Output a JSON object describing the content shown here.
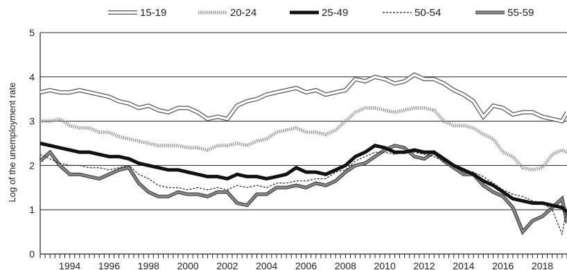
{
  "chart_data": {
    "type": "line",
    "title": "",
    "xlabel": "",
    "ylabel": "Log of the unemployment rate",
    "xlim": [
      1993.0,
      2019.75
    ],
    "ylim": [
      0,
      5
    ],
    "y_ticks": [
      0,
      1,
      2,
      3,
      4,
      5
    ],
    "x_tick_labels": [
      "1994",
      "1996",
      "1998",
      "2000",
      "2002",
      "2004",
      "2006",
      "2008",
      "2010",
      "2012",
      "2014",
      "2016",
      "2018"
    ],
    "grid": "horizontal",
    "legend_position": "top",
    "series": [
      {
        "name": "15-19",
        "style": "double-line",
        "color": "#555555",
        "fill": "#ffffff",
        "points": [
          [
            1993.0,
            3.65
          ],
          [
            1993.5,
            3.7
          ],
          [
            1994.0,
            3.65
          ],
          [
            1994.5,
            3.65
          ],
          [
            1995.0,
            3.7
          ],
          [
            1995.5,
            3.65
          ],
          [
            1996.0,
            3.6
          ],
          [
            1996.5,
            3.55
          ],
          [
            1997.0,
            3.45
          ],
          [
            1997.5,
            3.4
          ],
          [
            1998.0,
            3.3
          ],
          [
            1998.5,
            3.35
          ],
          [
            1999.0,
            3.25
          ],
          [
            1999.5,
            3.2
          ],
          [
            2000.0,
            3.3
          ],
          [
            2000.5,
            3.3
          ],
          [
            2001.0,
            3.2
          ],
          [
            2001.5,
            3.05
          ],
          [
            2002.0,
            3.1
          ],
          [
            2002.5,
            3.05
          ],
          [
            2003.0,
            3.35
          ],
          [
            2003.5,
            3.45
          ],
          [
            2004.0,
            3.5
          ],
          [
            2004.5,
            3.6
          ],
          [
            2005.0,
            3.65
          ],
          [
            2005.5,
            3.7
          ],
          [
            2006.0,
            3.75
          ],
          [
            2006.5,
            3.65
          ],
          [
            2007.0,
            3.7
          ],
          [
            2007.5,
            3.6
          ],
          [
            2008.0,
            3.65
          ],
          [
            2008.5,
            3.7
          ],
          [
            2009.0,
            3.95
          ],
          [
            2009.5,
            3.9
          ],
          [
            2010.0,
            4.0
          ],
          [
            2010.5,
            3.95
          ],
          [
            2011.0,
            3.85
          ],
          [
            2011.5,
            3.9
          ],
          [
            2012.0,
            4.05
          ],
          [
            2012.5,
            3.95
          ],
          [
            2013.0,
            3.95
          ],
          [
            2013.5,
            3.85
          ],
          [
            2014.0,
            3.7
          ],
          [
            2014.5,
            3.6
          ],
          [
            2015.0,
            3.45
          ],
          [
            2015.5,
            3.1
          ],
          [
            2016.0,
            3.35
          ],
          [
            2016.5,
            3.3
          ],
          [
            2017.0,
            3.15
          ],
          [
            2017.5,
            3.2
          ],
          [
            2018.0,
            3.2
          ],
          [
            2018.5,
            3.1
          ],
          [
            2019.0,
            3.05
          ],
          [
            2019.5,
            3.0
          ],
          [
            2019.75,
            3.2
          ]
        ]
      },
      {
        "name": "20-24",
        "style": "dotted-band",
        "color": "#999999",
        "fill": "#999999",
        "points": [
          [
            1993.0,
            3.0
          ],
          [
            1993.5,
            3.0
          ],
          [
            1994.0,
            3.05
          ],
          [
            1994.5,
            2.9
          ],
          [
            1995.0,
            2.85
          ],
          [
            1995.5,
            2.85
          ],
          [
            1996.0,
            2.75
          ],
          [
            1996.5,
            2.75
          ],
          [
            1997.0,
            2.65
          ],
          [
            1997.5,
            2.6
          ],
          [
            1998.0,
            2.55
          ],
          [
            1998.5,
            2.5
          ],
          [
            1999.0,
            2.45
          ],
          [
            1999.5,
            2.45
          ],
          [
            2000.0,
            2.45
          ],
          [
            2000.5,
            2.4
          ],
          [
            2001.0,
            2.4
          ],
          [
            2001.5,
            2.35
          ],
          [
            2002.0,
            2.45
          ],
          [
            2002.5,
            2.45
          ],
          [
            2003.0,
            2.5
          ],
          [
            2003.5,
            2.45
          ],
          [
            2004.0,
            2.55
          ],
          [
            2004.5,
            2.6
          ],
          [
            2005.0,
            2.75
          ],
          [
            2005.5,
            2.8
          ],
          [
            2006.0,
            2.85
          ],
          [
            2006.5,
            2.75
          ],
          [
            2007.0,
            2.75
          ],
          [
            2007.5,
            2.7
          ],
          [
            2008.0,
            2.8
          ],
          [
            2008.5,
            3.0
          ],
          [
            2009.0,
            3.2
          ],
          [
            2009.5,
            3.3
          ],
          [
            2010.0,
            3.3
          ],
          [
            2010.5,
            3.25
          ],
          [
            2011.0,
            3.2
          ],
          [
            2011.5,
            3.25
          ],
          [
            2012.0,
            3.3
          ],
          [
            2012.5,
            3.3
          ],
          [
            2013.0,
            3.25
          ],
          [
            2013.5,
            3.0
          ],
          [
            2014.0,
            2.9
          ],
          [
            2014.5,
            2.9
          ],
          [
            2015.0,
            2.85
          ],
          [
            2015.5,
            2.7
          ],
          [
            2016.0,
            2.6
          ],
          [
            2016.5,
            2.3
          ],
          [
            2017.0,
            2.2
          ],
          [
            2017.5,
            1.95
          ],
          [
            2018.0,
            1.9
          ],
          [
            2018.5,
            1.95
          ],
          [
            2019.0,
            2.25
          ],
          [
            2019.5,
            2.35
          ],
          [
            2019.75,
            2.3
          ]
        ]
      },
      {
        "name": "25-49",
        "style": "thick-solid",
        "color": "#111111",
        "fill": "#111111",
        "points": [
          [
            1993.0,
            2.5
          ],
          [
            1993.5,
            2.45
          ],
          [
            1994.0,
            2.4
          ],
          [
            1994.5,
            2.35
          ],
          [
            1995.0,
            2.3
          ],
          [
            1995.5,
            2.3
          ],
          [
            1996.0,
            2.25
          ],
          [
            1996.5,
            2.2
          ],
          [
            1997.0,
            2.2
          ],
          [
            1997.5,
            2.15
          ],
          [
            1998.0,
            2.05
          ],
          [
            1998.5,
            2.0
          ],
          [
            1999.0,
            1.95
          ],
          [
            1999.5,
            1.9
          ],
          [
            2000.0,
            1.9
          ],
          [
            2000.5,
            1.85
          ],
          [
            2001.0,
            1.8
          ],
          [
            2001.5,
            1.75
          ],
          [
            2002.0,
            1.75
          ],
          [
            2002.5,
            1.7
          ],
          [
            2003.0,
            1.8
          ],
          [
            2003.5,
            1.75
          ],
          [
            2004.0,
            1.75
          ],
          [
            2004.5,
            1.7
          ],
          [
            2005.0,
            1.75
          ],
          [
            2005.5,
            1.8
          ],
          [
            2006.0,
            1.95
          ],
          [
            2006.5,
            1.85
          ],
          [
            2007.0,
            1.85
          ],
          [
            2007.5,
            1.8
          ],
          [
            2008.0,
            1.9
          ],
          [
            2008.5,
            2.0
          ],
          [
            2009.0,
            2.2
          ],
          [
            2009.5,
            2.3
          ],
          [
            2010.0,
            2.45
          ],
          [
            2010.5,
            2.4
          ],
          [
            2011.0,
            2.3
          ],
          [
            2011.5,
            2.3
          ],
          [
            2012.0,
            2.35
          ],
          [
            2012.5,
            2.3
          ],
          [
            2013.0,
            2.3
          ],
          [
            2013.5,
            2.15
          ],
          [
            2014.0,
            2.0
          ],
          [
            2014.5,
            1.9
          ],
          [
            2015.0,
            1.8
          ],
          [
            2015.5,
            1.65
          ],
          [
            2016.0,
            1.55
          ],
          [
            2016.5,
            1.4
          ],
          [
            2017.0,
            1.25
          ],
          [
            2017.5,
            1.2
          ],
          [
            2018.0,
            1.15
          ],
          [
            2018.5,
            1.15
          ],
          [
            2019.0,
            1.1
          ],
          [
            2019.5,
            1.05
          ],
          [
            2019.75,
            0.95
          ]
        ]
      },
      {
        "name": "50-54",
        "style": "thin-dashed",
        "color": "#222222",
        "fill": "#ffffff",
        "points": [
          [
            1993.0,
            2.25
          ],
          [
            1993.5,
            2.15
          ],
          [
            1994.0,
            2.05
          ],
          [
            1994.5,
            2.0
          ],
          [
            1995.0,
            2.0
          ],
          [
            1995.5,
            1.95
          ],
          [
            1996.0,
            1.95
          ],
          [
            1996.5,
            1.9
          ],
          [
            1997.0,
            1.95
          ],
          [
            1997.5,
            2.0
          ],
          [
            1998.0,
            1.8
          ],
          [
            1998.5,
            1.7
          ],
          [
            1999.0,
            1.55
          ],
          [
            1999.5,
            1.5
          ],
          [
            2000.0,
            1.5
          ],
          [
            2000.5,
            1.45
          ],
          [
            2001.0,
            1.5
          ],
          [
            2001.5,
            1.45
          ],
          [
            2002.0,
            1.5
          ],
          [
            2002.5,
            1.45
          ],
          [
            2003.0,
            1.55
          ],
          [
            2003.5,
            1.5
          ],
          [
            2004.0,
            1.55
          ],
          [
            2004.5,
            1.5
          ],
          [
            2005.0,
            1.6
          ],
          [
            2005.5,
            1.6
          ],
          [
            2006.0,
            1.65
          ],
          [
            2006.5,
            1.65
          ],
          [
            2007.0,
            1.7
          ],
          [
            2007.5,
            1.7
          ],
          [
            2008.0,
            1.85
          ],
          [
            2008.5,
            1.9
          ],
          [
            2009.0,
            2.1
          ],
          [
            2009.5,
            2.2
          ],
          [
            2010.0,
            2.3
          ],
          [
            2010.5,
            2.3
          ],
          [
            2011.0,
            2.25
          ],
          [
            2011.5,
            2.3
          ],
          [
            2012.0,
            2.3
          ],
          [
            2012.5,
            2.25
          ],
          [
            2013.0,
            2.2
          ],
          [
            2013.5,
            2.1
          ],
          [
            2014.0,
            2.0
          ],
          [
            2014.5,
            1.9
          ],
          [
            2015.0,
            1.85
          ],
          [
            2015.5,
            1.75
          ],
          [
            2016.0,
            1.6
          ],
          [
            2016.5,
            1.45
          ],
          [
            2017.0,
            1.35
          ],
          [
            2017.5,
            1.3
          ],
          [
            2018.0,
            1.2
          ],
          [
            2018.5,
            1.15
          ],
          [
            2019.0,
            1.0
          ],
          [
            2019.5,
            0.45
          ],
          [
            2019.75,
            1.05
          ]
        ]
      },
      {
        "name": "55-59",
        "style": "grey-thick",
        "color": "#333333",
        "fill": "#888888",
        "points": [
          [
            1993.0,
            2.1
          ],
          [
            1993.5,
            2.3
          ],
          [
            1994.0,
            2.0
          ],
          [
            1994.5,
            1.8
          ],
          [
            1995.0,
            1.8
          ],
          [
            1995.5,
            1.75
          ],
          [
            1996.0,
            1.7
          ],
          [
            1996.5,
            1.8
          ],
          [
            1997.0,
            1.9
          ],
          [
            1997.5,
            1.95
          ],
          [
            1998.0,
            1.6
          ],
          [
            1998.5,
            1.4
          ],
          [
            1999.0,
            1.3
          ],
          [
            1999.5,
            1.3
          ],
          [
            2000.0,
            1.4
          ],
          [
            2000.5,
            1.35
          ],
          [
            2001.0,
            1.35
          ],
          [
            2001.5,
            1.3
          ],
          [
            2002.0,
            1.4
          ],
          [
            2002.5,
            1.4
          ],
          [
            2003.0,
            1.15
          ],
          [
            2003.5,
            1.1
          ],
          [
            2004.0,
            1.35
          ],
          [
            2004.5,
            1.35
          ],
          [
            2005.0,
            1.5
          ],
          [
            2005.5,
            1.5
          ],
          [
            2006.0,
            1.55
          ],
          [
            2006.5,
            1.5
          ],
          [
            2007.0,
            1.6
          ],
          [
            2007.5,
            1.55
          ],
          [
            2008.0,
            1.65
          ],
          [
            2008.5,
            1.85
          ],
          [
            2009.0,
            2.0
          ],
          [
            2009.5,
            2.05
          ],
          [
            2010.0,
            2.2
          ],
          [
            2010.5,
            2.35
          ],
          [
            2011.0,
            2.45
          ],
          [
            2011.5,
            2.4
          ],
          [
            2012.0,
            2.2
          ],
          [
            2012.5,
            2.15
          ],
          [
            2013.0,
            2.3
          ],
          [
            2013.5,
            2.1
          ],
          [
            2014.0,
            1.95
          ],
          [
            2014.5,
            1.8
          ],
          [
            2015.0,
            1.8
          ],
          [
            2015.5,
            1.55
          ],
          [
            2016.0,
            1.4
          ],
          [
            2016.5,
            1.3
          ],
          [
            2017.0,
            1.05
          ],
          [
            2017.5,
            0.5
          ],
          [
            2018.0,
            0.75
          ],
          [
            2018.5,
            0.85
          ],
          [
            2019.0,
            1.05
          ],
          [
            2019.5,
            1.25
          ],
          [
            2019.75,
            0.7
          ]
        ]
      }
    ]
  }
}
